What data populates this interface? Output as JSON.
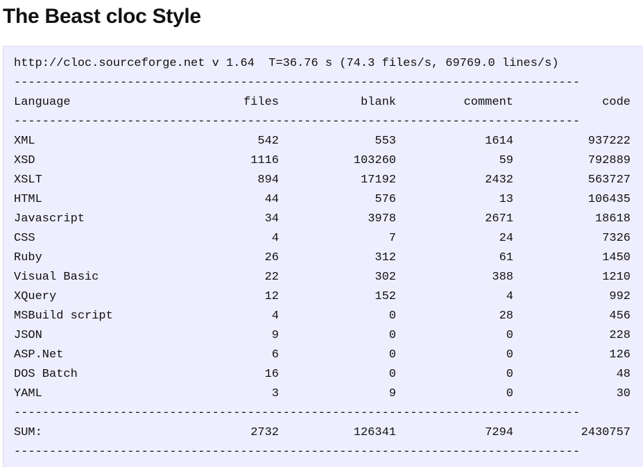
{
  "page": {
    "title": "The Beast cloc Style"
  },
  "report": {
    "header_line": "http://cloc.sourceforge.net v 1.64  T=36.76 s (74.3 files/s, 69769.0 lines/s)",
    "separator": "--------------------------------------------------------------------------------",
    "columns": {
      "language": "Language",
      "files": "files",
      "blank": "blank",
      "comment": "comment",
      "code": "code"
    },
    "rows": [
      {
        "language": "XML",
        "files": "542",
        "blank": "553",
        "comment": "1614",
        "code": "937222"
      },
      {
        "language": "XSD",
        "files": "1116",
        "blank": "103260",
        "comment": "59",
        "code": "792889"
      },
      {
        "language": "XSLT",
        "files": "894",
        "blank": "17192",
        "comment": "2432",
        "code": "563727"
      },
      {
        "language": "HTML",
        "files": "44",
        "blank": "576",
        "comment": "13",
        "code": "106435"
      },
      {
        "language": "Javascript",
        "files": "34",
        "blank": "3978",
        "comment": "2671",
        "code": "18618"
      },
      {
        "language": "CSS",
        "files": "4",
        "blank": "7",
        "comment": "24",
        "code": "7326"
      },
      {
        "language": "Ruby",
        "files": "26",
        "blank": "312",
        "comment": "61",
        "code": "1450"
      },
      {
        "language": "Visual Basic",
        "files": "22",
        "blank": "302",
        "comment": "388",
        "code": "1210"
      },
      {
        "language": "XQuery",
        "files": "12",
        "blank": "152",
        "comment": "4",
        "code": "992"
      },
      {
        "language": "MSBuild script",
        "files": "4",
        "blank": "0",
        "comment": "28",
        "code": "456"
      },
      {
        "language": "JSON",
        "files": "9",
        "blank": "0",
        "comment": "0",
        "code": "228"
      },
      {
        "language": "ASP.Net",
        "files": "6",
        "blank": "0",
        "comment": "0",
        "code": "126"
      },
      {
        "language": "DOS Batch",
        "files": "16",
        "blank": "0",
        "comment": "0",
        "code": "48"
      },
      {
        "language": "YAML",
        "files": "3",
        "blank": "9",
        "comment": "0",
        "code": "30"
      }
    ],
    "sum": {
      "language": "SUM:",
      "files": "2732",
      "blank": "126341",
      "comment": "7294",
      "code": "2430757"
    }
  }
}
